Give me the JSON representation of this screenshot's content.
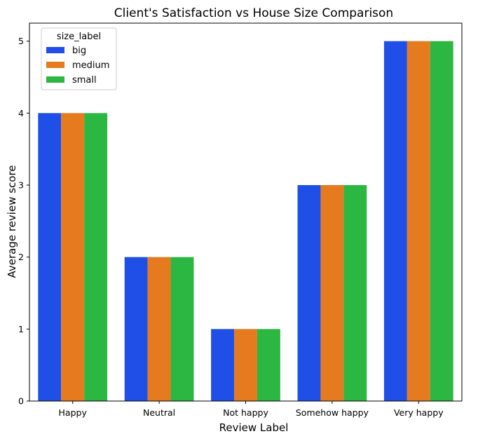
{
  "chart_data": {
    "type": "bar",
    "title": "Client's Satisfaction vs House Size Comparison",
    "xlabel": "Review Label",
    "ylabel": "Average review score",
    "categories": [
      "Happy",
      "Neutral",
      "Not happy",
      "Somehow happy",
      "Very happy"
    ],
    "series": [
      {
        "name": "big",
        "color": "#1f4fe6",
        "values": [
          4,
          2,
          1,
          3,
          5
        ]
      },
      {
        "name": "medium",
        "color": "#e67a1f",
        "values": [
          4,
          2,
          1,
          3,
          5
        ]
      },
      {
        "name": "small",
        "color": "#2cb642",
        "values": [
          4,
          2,
          1,
          3,
          5
        ]
      }
    ],
    "yticks": [
      "0",
      "1",
      "2",
      "3",
      "4",
      "5"
    ],
    "ylim": [
      0,
      5.25
    ],
    "legend": {
      "title": "size_label",
      "placement": "top-left"
    },
    "grid": false
  }
}
